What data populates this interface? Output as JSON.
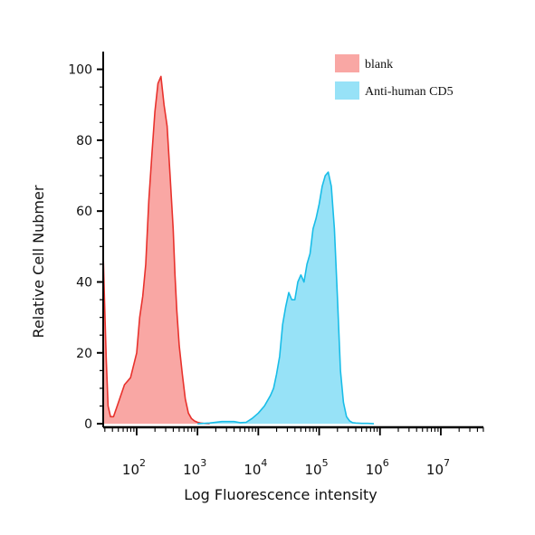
{
  "chart_data": {
    "type": "area",
    "xlabel": "Log Fluorescence intensity",
    "ylabel": "Relative Cell Nubmer",
    "x_scale": "log",
    "xlim": [
      1.45,
      7.7
    ],
    "ylim": [
      -1,
      105
    ],
    "x_ticks": [
      {
        "exp": 2,
        "base": "10",
        "sup": "2"
      },
      {
        "exp": 3,
        "base": "10",
        "sup": "3"
      },
      {
        "exp": 4,
        "base": "10",
        "sup": "4"
      },
      {
        "exp": 5,
        "base": "10",
        "sup": "5"
      },
      {
        "exp": 6,
        "base": "10",
        "sup": "6"
      },
      {
        "exp": 7,
        "base": "10",
        "sup": "7"
      }
    ],
    "y_ticks": [
      0,
      20,
      40,
      60,
      80,
      100
    ],
    "legend_position": "top-right",
    "series": [
      {
        "name": "blank",
        "fill": "#f9a7a4",
        "stroke": "#e8322d",
        "x_log10": [
          1.45,
          1.47,
          1.5,
          1.53,
          1.57,
          1.62,
          1.7,
          1.8,
          1.9,
          2.0,
          2.05,
          2.1,
          2.15,
          2.2,
          2.25,
          2.3,
          2.35,
          2.4,
          2.45,
          2.5,
          2.55,
          2.6,
          2.63,
          2.66,
          2.7,
          2.75,
          2.8,
          2.85,
          2.9,
          2.95,
          3.0,
          3.05,
          3.1,
          3.2
        ],
        "y": [
          48,
          36,
          18,
          5,
          2,
          2,
          6,
          11,
          13,
          20,
          30,
          36,
          45,
          63,
          76,
          88,
          96,
          98,
          90,
          84,
          70,
          55,
          42,
          32,
          22,
          14,
          7,
          3,
          1.5,
          0.8,
          0.4,
          0.2,
          0.1,
          0
        ]
      },
      {
        "name": "Anti-human CD5",
        "fill": "#97e2f7",
        "stroke": "#19bde8",
        "x_log10": [
          3.0,
          3.2,
          3.4,
          3.6,
          3.7,
          3.8,
          3.9,
          4.0,
          4.1,
          4.2,
          4.25,
          4.3,
          4.35,
          4.4,
          4.45,
          4.5,
          4.55,
          4.6,
          4.65,
          4.7,
          4.75,
          4.8,
          4.85,
          4.9,
          4.95,
          5.0,
          5.05,
          5.1,
          5.15,
          5.2,
          5.25,
          5.3,
          5.35,
          5.4,
          5.45,
          5.5,
          5.55,
          5.6,
          5.7,
          5.8,
          5.9
        ],
        "y": [
          0,
          0.2,
          0.6,
          0.6,
          0.3,
          0.4,
          1.5,
          3,
          5,
          8,
          10,
          14,
          19,
          28,
          33,
          37,
          35,
          35,
          40,
          42,
          40,
          45,
          48,
          55,
          58,
          62,
          67,
          70,
          71,
          67,
          55,
          36,
          15,
          6,
          2,
          0.8,
          0.3,
          0.2,
          0.1,
          0.1,
          0
        ]
      }
    ]
  }
}
